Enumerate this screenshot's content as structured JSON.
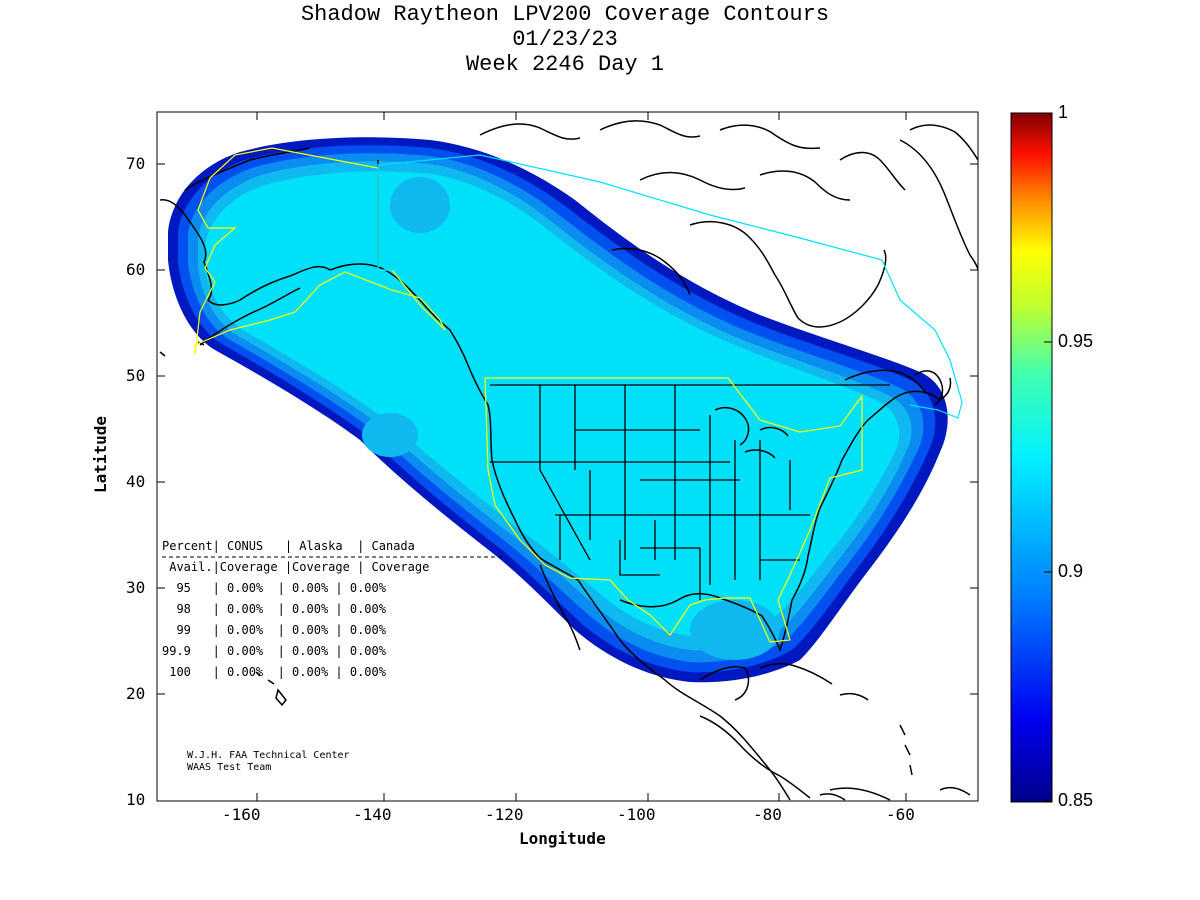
{
  "title": {
    "line1": "Shadow Raytheon LPV200 Coverage Contours",
    "line2": "01/23/23",
    "line3": "Week 2246 Day 1"
  },
  "axes": {
    "xlabel": "Longitude",
    "ylabel": "Latitude",
    "xticks": [
      "-160",
      "-140",
      "-120",
      "-100",
      "-80",
      "-60"
    ],
    "yticks": [
      "70",
      "60",
      "50",
      "40",
      "30",
      "20",
      "10"
    ],
    "xlim": [
      -175,
      -50
    ],
    "ylim": [
      10,
      75
    ]
  },
  "colorbar": {
    "labels": [
      "1",
      "0.95",
      "0.9",
      "0.85"
    ],
    "range": [
      0.85,
      1.0
    ],
    "colormap": "jet"
  },
  "table": {
    "header1": "Percent| CONUS   | Alaska  | Canada",
    "header2": " Avail.|Coverage |Coverage | Coverage",
    "rows": [
      "  95   | 0.00%  | 0.00% | 0.00%",
      "  98   | 0.00%  | 0.00% | 0.00%",
      "  99   | 0.00%  | 0.00% | 0.00%",
      "99.9   | 0.00%  | 0.00% | 0.00%",
      " 100   | 0.00%  | 0.00% | 0.00%"
    ]
  },
  "credit": {
    "line1": "W.J.H. FAA Technical Center",
    "line2": "WAAS Test Team"
  },
  "colors": {
    "coverage_core": "#00e0f8",
    "coverage_inner": "#10b8f0",
    "coverage_mid": "#0a8cf0",
    "coverage_outer": "#0050f0",
    "coverage_edge": "#0018c0",
    "boundary_conus": "#ffff00",
    "boundary_canada": "#00e0ff"
  }
}
